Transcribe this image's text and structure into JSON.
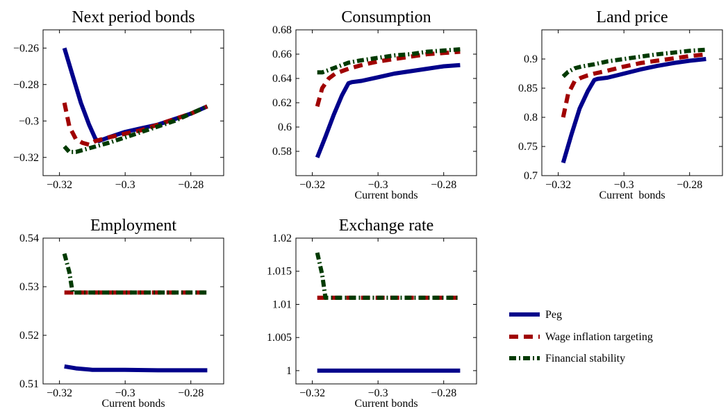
{
  "legend": [
    {
      "name": "Peg",
      "color": "#00008b",
      "dash": "solid"
    },
    {
      "name": "Wage inflation targeting",
      "color": "#a00000",
      "dash": "dashed"
    },
    {
      "name": "Financial stability",
      "color": "#003a00",
      "dash": "dashdot"
    }
  ],
  "chart_data": [
    {
      "type": "line",
      "title": "Next period bonds",
      "xlabel": "",
      "ylabel": "",
      "xlim": [
        -0.325,
        -0.27
      ],
      "ylim": [
        -0.33,
        -0.25
      ],
      "xticks": [
        -0.32,
        -0.3,
        -0.28
      ],
      "xtick_labels": [
        "−0.32",
        "−0.3",
        "−0.28"
      ],
      "yticks": [
        -0.32,
        -0.3,
        -0.28,
        -0.26
      ],
      "ytick_labels": [
        "−0.32",
        "−0.3",
        "−0.28",
        "−0.26"
      ],
      "grid": false,
      "series": [
        {
          "name": "Peg",
          "x": [
            -0.3185,
            -0.316,
            -0.3135,
            -0.311,
            -0.309,
            -0.308,
            -0.305,
            -0.3,
            -0.295,
            -0.29,
            -0.285,
            -0.28,
            -0.275
          ],
          "y": [
            -0.26,
            -0.275,
            -0.29,
            -0.302,
            -0.31,
            -0.311,
            -0.309,
            -0.306,
            -0.304,
            -0.302,
            -0.299,
            -0.296,
            -0.292
          ]
        },
        {
          "name": "Wage inflation targeting",
          "x": [
            -0.3185,
            -0.317,
            -0.315,
            -0.313,
            -0.311,
            -0.309,
            -0.305,
            -0.3,
            -0.295,
            -0.29,
            -0.285,
            -0.28,
            -0.275
          ],
          "y": [
            -0.29,
            -0.303,
            -0.31,
            -0.312,
            -0.313,
            -0.311,
            -0.309,
            -0.307,
            -0.305,
            -0.302,
            -0.299,
            -0.296,
            -0.292
          ]
        },
        {
          "name": "Financial stability",
          "x": [
            -0.3185,
            -0.317,
            -0.315,
            -0.313,
            -0.311,
            -0.309,
            -0.305,
            -0.3,
            -0.295,
            -0.29,
            -0.285,
            -0.28,
            -0.275
          ],
          "y": [
            -0.314,
            -0.317,
            -0.317,
            -0.316,
            -0.315,
            -0.314,
            -0.312,
            -0.309,
            -0.306,
            -0.303,
            -0.3,
            -0.296,
            -0.292
          ]
        }
      ]
    },
    {
      "type": "line",
      "title": "Consumption",
      "xlabel": "Current bonds",
      "ylabel": "",
      "xlim": [
        -0.325,
        -0.27
      ],
      "ylim": [
        0.56,
        0.68
      ],
      "xticks": [
        -0.32,
        -0.3,
        -0.28
      ],
      "xtick_labels": [
        "−0.32",
        "−0.3",
        "−0.28"
      ],
      "yticks": [
        0.58,
        0.6,
        0.62,
        0.64,
        0.66,
        0.68
      ],
      "ytick_labels": [
        "0.58",
        "0.6",
        "0.62",
        "0.64",
        "0.66",
        "0.68"
      ],
      "grid": false,
      "series": [
        {
          "name": "Peg",
          "x": [
            -0.3185,
            -0.316,
            -0.3135,
            -0.311,
            -0.309,
            -0.308,
            -0.305,
            -0.3,
            -0.295,
            -0.29,
            -0.285,
            -0.28,
            -0.275
          ],
          "y": [
            0.575,
            0.592,
            0.61,
            0.626,
            0.636,
            0.637,
            0.638,
            0.641,
            0.644,
            0.646,
            0.648,
            0.65,
            0.651
          ]
        },
        {
          "name": "Wage inflation targeting",
          "x": [
            -0.3185,
            -0.317,
            -0.315,
            -0.313,
            -0.311,
            -0.309,
            -0.305,
            -0.3,
            -0.295,
            -0.29,
            -0.285,
            -0.28,
            -0.275
          ],
          "y": [
            0.617,
            0.632,
            0.64,
            0.644,
            0.646,
            0.648,
            0.651,
            0.654,
            0.656,
            0.658,
            0.66,
            0.661,
            0.662
          ]
        },
        {
          "name": "Financial stability",
          "x": [
            -0.3185,
            -0.317,
            -0.315,
            -0.313,
            -0.311,
            -0.309,
            -0.305,
            -0.3,
            -0.295,
            -0.29,
            -0.285,
            -0.28,
            -0.275
          ],
          "y": [
            0.645,
            0.645,
            0.647,
            0.649,
            0.651,
            0.653,
            0.655,
            0.657,
            0.659,
            0.66,
            0.662,
            0.663,
            0.664
          ]
        }
      ]
    },
    {
      "type": "line",
      "title": "Land price",
      "xlabel": "Current  bonds",
      "ylabel": "",
      "xlim": [
        -0.325,
        -0.27
      ],
      "ylim": [
        0.7,
        0.95
      ],
      "xticks": [
        -0.32,
        -0.3,
        -0.28
      ],
      "xtick_labels": [
        "−0.32",
        "−0.3",
        "−0.28"
      ],
      "yticks": [
        0.7,
        0.75,
        0.8,
        0.85,
        0.9
      ],
      "ytick_labels": [
        "0.7",
        "0.75",
        "0.8",
        "0.85",
        "0.9"
      ],
      "grid": false,
      "series": [
        {
          "name": "Peg",
          "x": [
            -0.3185,
            -0.316,
            -0.3135,
            -0.311,
            -0.309,
            -0.308,
            -0.305,
            -0.3,
            -0.295,
            -0.29,
            -0.285,
            -0.28,
            -0.275
          ],
          "y": [
            0.722,
            0.77,
            0.815,
            0.845,
            0.864,
            0.866,
            0.868,
            0.875,
            0.882,
            0.888,
            0.893,
            0.897,
            0.9
          ]
        },
        {
          "name": "Wage inflation targeting",
          "x": [
            -0.3185,
            -0.317,
            -0.315,
            -0.313,
            -0.311,
            -0.309,
            -0.305,
            -0.3,
            -0.295,
            -0.29,
            -0.285,
            -0.28,
            -0.275
          ],
          "y": [
            0.8,
            0.84,
            0.862,
            0.868,
            0.872,
            0.875,
            0.88,
            0.887,
            0.893,
            0.897,
            0.901,
            0.905,
            0.908
          ]
        },
        {
          "name": "Financial stability",
          "x": [
            -0.3185,
            -0.317,
            -0.315,
            -0.313,
            -0.311,
            -0.309,
            -0.305,
            -0.3,
            -0.295,
            -0.29,
            -0.285,
            -0.28,
            -0.275
          ],
          "y": [
            0.87,
            0.878,
            0.884,
            0.887,
            0.889,
            0.891,
            0.896,
            0.9,
            0.904,
            0.908,
            0.911,
            0.914,
            0.916
          ]
        }
      ]
    },
    {
      "type": "line",
      "title": "Employment",
      "xlabel": "Current bonds",
      "ylabel": "",
      "xlim": [
        -0.325,
        -0.27
      ],
      "ylim": [
        0.51,
        0.54
      ],
      "xticks": [
        -0.32,
        -0.3,
        -0.28
      ],
      "xtick_labels": [
        "−0.32",
        "−0.3",
        "−0.28"
      ],
      "yticks": [
        0.51,
        0.52,
        0.53,
        0.54
      ],
      "ytick_labels": [
        "0.51",
        "0.52",
        "0.53",
        "0.54"
      ],
      "grid": false,
      "series": [
        {
          "name": "Peg",
          "x": [
            -0.3185,
            -0.315,
            -0.31,
            -0.305,
            -0.3,
            -0.29,
            -0.28,
            -0.275
          ],
          "y": [
            0.5136,
            0.5132,
            0.5129,
            0.5129,
            0.5129,
            0.5128,
            0.5128,
            0.5128
          ]
        },
        {
          "name": "Wage inflation targeting",
          "x": [
            -0.3185,
            -0.31,
            -0.3,
            -0.29,
            -0.28,
            -0.275
          ],
          "y": [
            0.5288,
            0.5288,
            0.5288,
            0.5288,
            0.5288,
            0.5288
          ]
        },
        {
          "name": "Financial stability",
          "x": [
            -0.3185,
            -0.317,
            -0.316,
            -0.31,
            -0.3,
            -0.29,
            -0.28,
            -0.275
          ],
          "y": [
            0.5368,
            0.533,
            0.5288,
            0.5288,
            0.5288,
            0.5288,
            0.5288,
            0.5288
          ]
        }
      ]
    },
    {
      "type": "line",
      "title": "Exchange rate",
      "xlabel": "Current bonds",
      "ylabel": "",
      "xlim": [
        -0.325,
        -0.27
      ],
      "ylim": [
        0.998,
        1.02
      ],
      "xticks": [
        -0.32,
        -0.3,
        -0.28
      ],
      "xtick_labels": [
        "−0.32",
        "−0.3",
        "−0.28"
      ],
      "yticks": [
        1.0,
        1.005,
        1.01,
        1.015,
        1.02
      ],
      "ytick_labels": [
        "1",
        "1.005",
        "1.01",
        "1.015",
        "1.02"
      ],
      "grid": false,
      "series": [
        {
          "name": "Peg",
          "x": [
            -0.3185,
            -0.3,
            -0.28,
            -0.275
          ],
          "y": [
            1.0,
            1.0,
            1.0,
            1.0
          ]
        },
        {
          "name": "Wage inflation targeting",
          "x": [
            -0.3185,
            -0.3,
            -0.28,
            -0.275
          ],
          "y": [
            1.011,
            1.011,
            1.011,
            1.011
          ]
        },
        {
          "name": "Financial stability",
          "x": [
            -0.3185,
            -0.317,
            -0.316,
            -0.31,
            -0.3,
            -0.29,
            -0.28,
            -0.275
          ],
          "y": [
            1.0178,
            1.0145,
            1.011,
            1.011,
            1.011,
            1.011,
            1.011,
            1.011
          ]
        }
      ]
    }
  ]
}
